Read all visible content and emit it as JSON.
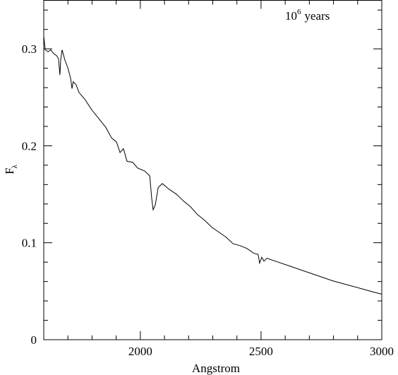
{
  "chart_data": {
    "type": "line",
    "xlabel": "Angstrom",
    "ylabel": {
      "base": "F",
      "subscript": "λ"
    },
    "annotation": {
      "base": "10",
      "exponent": "6",
      "text": "years"
    },
    "x": [
      1600,
      1606,
      1618,
      1629,
      1641,
      1653,
      1661,
      1667,
      1670,
      1676,
      1688,
      1699,
      1711,
      1717,
      1722,
      1734,
      1746,
      1770,
      1799,
      1828,
      1857,
      1881,
      1901,
      1916,
      1930,
      1945,
      1968,
      1989,
      2018,
      2039,
      2047,
      2053,
      2062,
      2074,
      2091,
      2120,
      2150,
      2179,
      2208,
      2237,
      2267,
      2296,
      2325,
      2354,
      2384,
      2413,
      2442,
      2471,
      2488,
      2494,
      2503,
      2512,
      2524,
      2559,
      2618,
      2676,
      2735,
      2793,
      2851,
      2910,
      2968,
      3000
    ],
    "values": [
      0.313,
      0.299,
      0.297,
      0.299,
      0.295,
      0.293,
      0.29,
      0.273,
      0.288,
      0.299,
      0.288,
      0.281,
      0.27,
      0.259,
      0.266,
      0.263,
      0.255,
      0.248,
      0.237,
      0.228,
      0.219,
      0.208,
      0.204,
      0.193,
      0.197,
      0.184,
      0.183,
      0.177,
      0.174,
      0.169,
      0.146,
      0.134,
      0.139,
      0.157,
      0.161,
      0.155,
      0.15,
      0.143,
      0.137,
      0.129,
      0.123,
      0.116,
      0.111,
      0.106,
      0.099,
      0.097,
      0.094,
      0.089,
      0.088,
      0.079,
      0.085,
      0.081,
      0.084,
      0.081,
      0.076,
      0.071,
      0.066,
      0.061,
      0.057,
      0.053,
      0.049,
      0.047
    ],
    "color": "#000000",
    "xlim": [
      1600,
      3000
    ],
    "xticks": [
      2000,
      2500,
      3000
    ],
    "xminor_ticks": [
      1600,
      1700,
      1800,
      1900,
      2100,
      2200,
      2300,
      2400,
      2600,
      2700,
      2800,
      2900
    ],
    "ylim": [
      0,
      0.35
    ],
    "yticks": [
      0,
      0.1,
      0.2,
      0.3
    ],
    "yminor_ticks": [
      0.02,
      0.04,
      0.06,
      0.08,
      0.12,
      0.14,
      0.16,
      0.18,
      0.22,
      0.24,
      0.26,
      0.28,
      0.32,
      0.34
    ]
  }
}
